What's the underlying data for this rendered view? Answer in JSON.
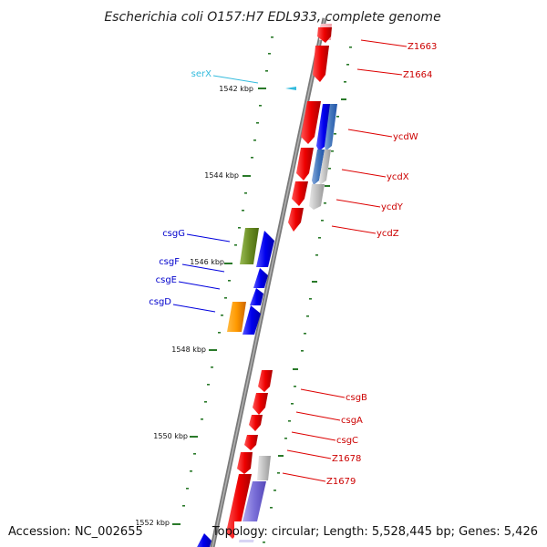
{
  "title": "Escherichia coli O157:H7 EDL933, complete genome",
  "footer": {
    "accession": "Accession: NC_002655",
    "topology": "Topology: circular; Length: 5,528,445 bp; Genes: 5,426"
  },
  "ticks": [
    {
      "label": "1542 kbp"
    },
    {
      "label": "1544 kbp"
    },
    {
      "label": "1546 kbp"
    },
    {
      "label": "1548 kbp"
    },
    {
      "label": "1550 kbp"
    },
    {
      "label": "1552 kbp"
    }
  ],
  "genes_right": [
    {
      "label": "Z1663"
    },
    {
      "label": "Z1664"
    },
    {
      "label": "ycdW"
    },
    {
      "label": "ycdX"
    },
    {
      "label": "ycdY"
    },
    {
      "label": "ycdZ"
    },
    {
      "label": "csgB"
    },
    {
      "label": "csgA"
    },
    {
      "label": "csgC"
    },
    {
      "label": "Z1678"
    },
    {
      "label": "Z1679"
    }
  ],
  "genes_left": [
    {
      "label": "serX"
    },
    {
      "label": "csgG"
    },
    {
      "label": "csgF"
    },
    {
      "label": "csgE"
    },
    {
      "label": "csgD"
    }
  ],
  "colors": {
    "forward_gene": "#ee0000",
    "reverse_gene": "#0000ee",
    "backbone": "#808080",
    "tick_mark": "#2a7a2a",
    "trna": "#33bbdd"
  }
}
